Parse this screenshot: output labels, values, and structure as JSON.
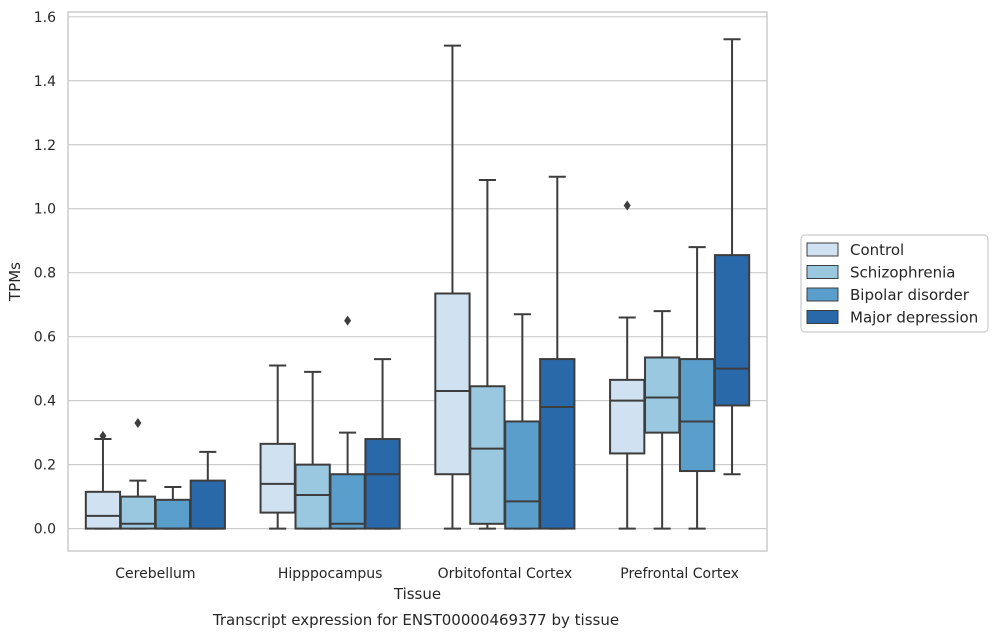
{
  "chart_data": {
    "type": "boxplot",
    "title": "Transcript expression for ENST00000469377 by tissue",
    "xlabel": "Tissue",
    "ylabel": "TPMs",
    "ylim": [
      -0.07,
      1.615
    ],
    "yticks": [
      0.0,
      0.2,
      0.4,
      0.6,
      0.8,
      1.0,
      1.2,
      1.4,
      1.6
    ],
    "ytick_labels": [
      "0.0",
      "0.2",
      "0.4",
      "0.6",
      "0.8",
      "1.0",
      "1.2",
      "1.4",
      "1.6"
    ],
    "grid": "horizontal",
    "legend_placement": "right",
    "categories": [
      "Cerebellum",
      "Hipppocampus",
      "Orbitofontal Cortex",
      "Prefrontal Cortex"
    ],
    "series": [
      {
        "name": "Control",
        "color": "#d0e1f2",
        "boxes": [
          {
            "whislo": 0.0,
            "q1": 0.0,
            "med": 0.04,
            "q3": 0.115,
            "whishi": 0.28,
            "fliers": [
              0.29
            ]
          },
          {
            "whislo": 0.0,
            "q1": 0.05,
            "med": 0.14,
            "q3": 0.265,
            "whishi": 0.51,
            "fliers": []
          },
          {
            "whislo": 0.0,
            "q1": 0.17,
            "med": 0.43,
            "q3": 0.735,
            "whishi": 1.51,
            "fliers": []
          },
          {
            "whislo": 0.0,
            "q1": 0.235,
            "med": 0.4,
            "q3": 0.465,
            "whishi": 0.66,
            "fliers": [
              1.01
            ]
          }
        ]
      },
      {
        "name": "Schizophrenia",
        "color": "#9ac8e0",
        "boxes": [
          {
            "whislo": 0.0,
            "q1": 0.0,
            "med": 0.015,
            "q3": 0.1,
            "whishi": 0.15,
            "fliers": [
              0.33
            ]
          },
          {
            "whislo": 0.0,
            "q1": 0.0,
            "med": 0.105,
            "q3": 0.2,
            "whishi": 0.49,
            "fliers": []
          },
          {
            "whislo": 0.0,
            "q1": 0.015,
            "med": 0.25,
            "q3": 0.445,
            "whishi": 1.09,
            "fliers": []
          },
          {
            "whislo": 0.0,
            "q1": 0.3,
            "med": 0.41,
            "q3": 0.535,
            "whishi": 0.68,
            "fliers": []
          }
        ]
      },
      {
        "name": "Bipolar disorder",
        "color": "#5a9ecc",
        "boxes": [
          {
            "whislo": 0.0,
            "q1": 0.0,
            "med": 0.0,
            "q3": 0.09,
            "whishi": 0.13,
            "fliers": []
          },
          {
            "whislo": 0.0,
            "q1": 0.0,
            "med": 0.015,
            "q3": 0.17,
            "whishi": 0.3,
            "fliers": [
              0.65
            ]
          },
          {
            "whislo": 0.0,
            "q1": 0.0,
            "med": 0.085,
            "q3": 0.335,
            "whishi": 0.67,
            "fliers": []
          },
          {
            "whislo": 0.0,
            "q1": 0.18,
            "med": 0.335,
            "q3": 0.53,
            "whishi": 0.88,
            "fliers": []
          }
        ]
      },
      {
        "name": "Major depression",
        "color": "#2a69a9",
        "boxes": [
          {
            "whislo": 0.0,
            "q1": 0.0,
            "med": 0.0,
            "q3": 0.15,
            "whishi": 0.24,
            "fliers": []
          },
          {
            "whislo": 0.0,
            "q1": 0.0,
            "med": 0.17,
            "q3": 0.28,
            "whishi": 0.53,
            "fliers": []
          },
          {
            "whislo": 0.0,
            "q1": 0.0,
            "med": 0.38,
            "q3": 0.53,
            "whishi": 1.1,
            "fliers": []
          },
          {
            "whislo": 0.17,
            "q1": 0.385,
            "med": 0.5,
            "q3": 0.855,
            "whishi": 1.53,
            "fliers": []
          }
        ]
      }
    ]
  }
}
